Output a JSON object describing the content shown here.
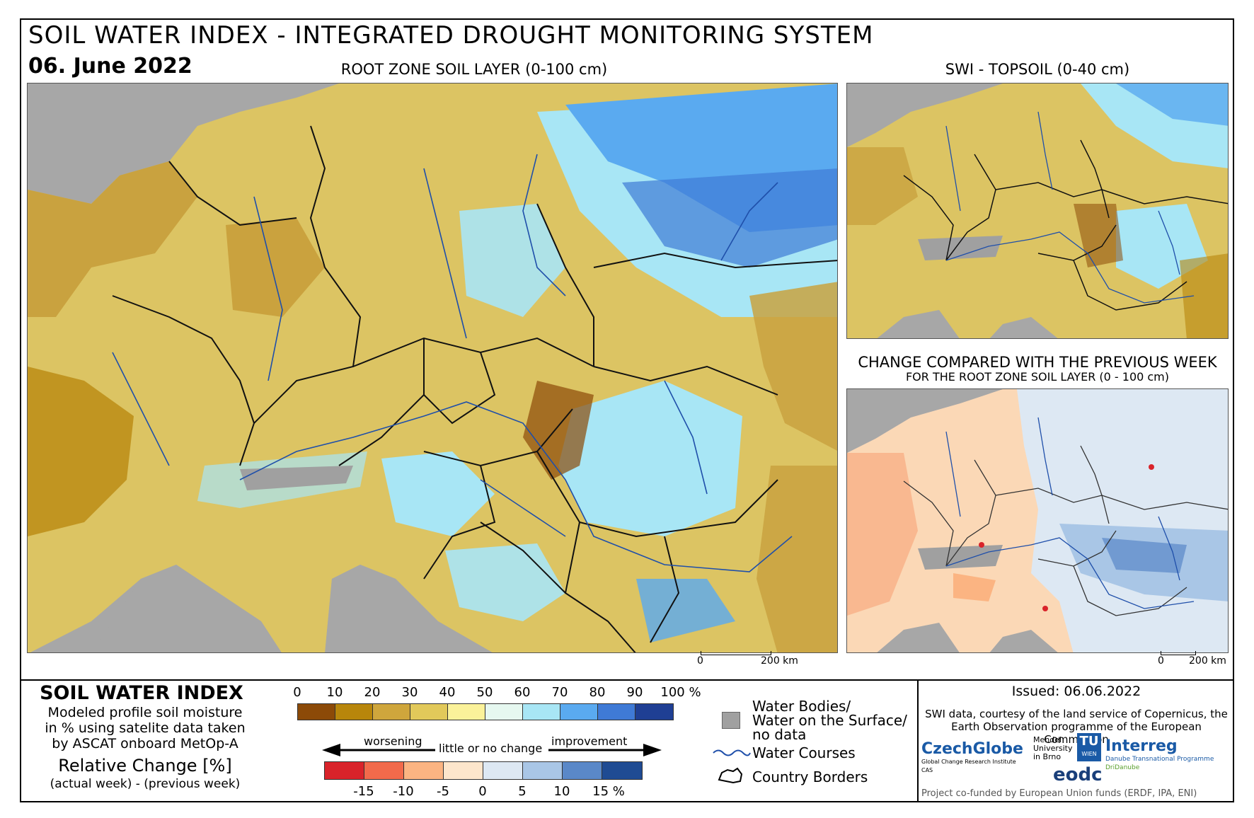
{
  "header": {
    "title": "SOIL WATER INDEX - INTEGRATED DROUGHT MONITORING SYSTEM",
    "date": "06. June 2022"
  },
  "main_map": {
    "title": "ROOT ZONE SOIL LAYER (0-100 cm)",
    "scale_start": "0",
    "scale_end": "200 km"
  },
  "topsoil_map": {
    "title": "SWI - TOPSOIL (0-40 cm)"
  },
  "change_map": {
    "title": "CHANGE COMPARED WITH THE PREVIOUS WEEK",
    "subtitle": "FOR THE ROOT ZONE SOIL LAYER (0 - 100 cm)",
    "scale_start": "0",
    "scale_end": "200 km"
  },
  "legend": {
    "title": "SOIL WATER INDEX",
    "description": [
      "Modeled profile soil moisture",
      "in % using satelite data taken",
      "by ASCAT onboard MetOp-A"
    ],
    "relative_title": "Relative Change [%]",
    "relative_sub": "(actual week) - (previous week)",
    "swi_ticks": [
      "0",
      "10",
      "20",
      "30",
      "40",
      "50",
      "60",
      "70",
      "80",
      "90",
      "100 %"
    ],
    "swi_colors": [
      "#8c4a08",
      "#b8860b",
      "#cfa63c",
      "#e2c95a",
      "#fbf29a",
      "#e6f8f0",
      "#a8e6f5",
      "#5aaaf0",
      "#3f7ad6",
      "#1f3f94"
    ],
    "worsening": "worsening",
    "little_change": "little or no change",
    "improvement": "improvement",
    "change_ticks": [
      "-15",
      "-10",
      "-5",
      "0",
      "5",
      "10",
      "15 %"
    ],
    "change_colors": [
      "#d9232a",
      "#f26a4b",
      "#fbb482",
      "#fde6cc",
      "#dde8f3",
      "#a9c6e6",
      "#5a88c8",
      "#1f4b93"
    ]
  },
  "symbols": {
    "water_bodies": [
      "Water Bodies/",
      "Water on the Surface/",
      "no data"
    ],
    "water_courses": "Water Courses",
    "country_borders": "Country Borders",
    "water_color": "#a0a0a0",
    "river_color": "#1f4faa"
  },
  "credits": {
    "issued": "Issued: 06.06.2022",
    "source": [
      "SWI data, courtesy of the land service of Copernicus, the",
      "Earth Observation programme of the European Commission"
    ],
    "czechglobe": "CzechGlobe",
    "czechglobe_sub": "Global Change Research Institute CAS",
    "mendel": [
      "Mendel",
      "University",
      "in Brno"
    ],
    "tu": "TU",
    "wien": "WIEN",
    "eodc": "eodc",
    "interreg": "Interreg",
    "interreg_sub": [
      "Danube Transnational Programme",
      "DriDanube"
    ],
    "cofunded": "Project co-funded by European Union funds (ERDF, IPA, ENI)"
  }
}
